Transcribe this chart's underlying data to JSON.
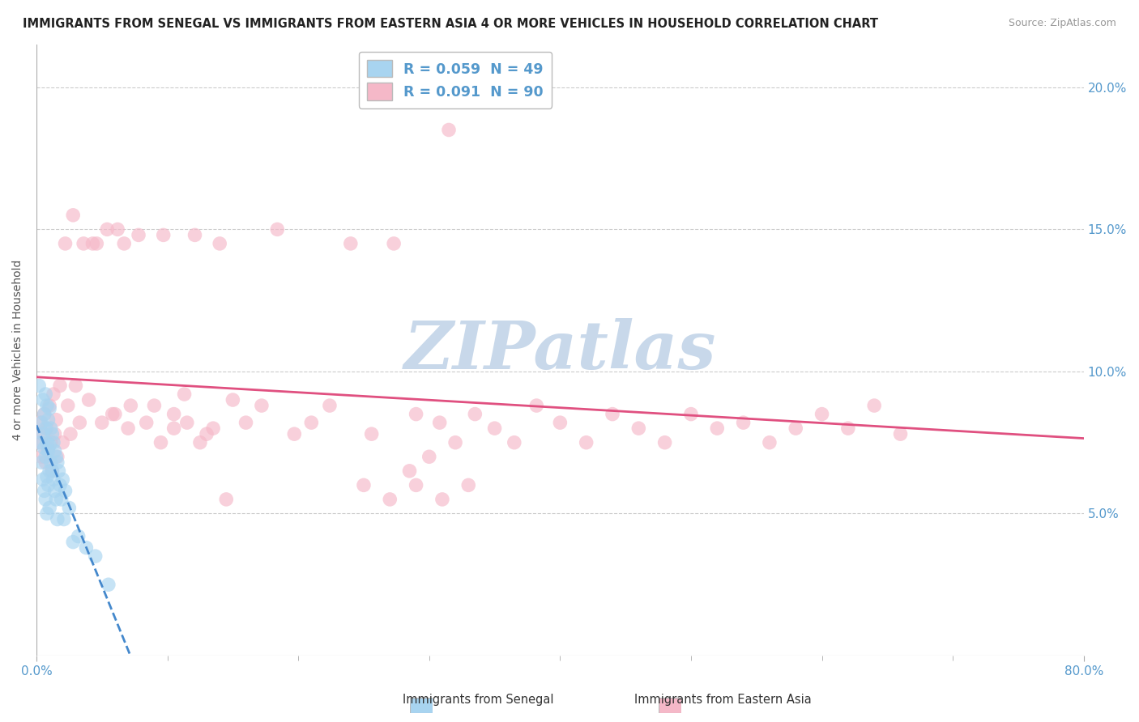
{
  "title": "IMMIGRANTS FROM SENEGAL VS IMMIGRANTS FROM EASTERN ASIA 4 OR MORE VEHICLES IN HOUSEHOLD CORRELATION CHART",
  "source": "Source: ZipAtlas.com",
  "ylabel": "4 or more Vehicles in Household",
  "xlim": [
    0.0,
    0.8
  ],
  "ylim": [
    0.0,
    0.215
  ],
  "ytick_positions": [
    0.05,
    0.1,
    0.15,
    0.2
  ],
  "ytick_labels": [
    "5.0%",
    "10.0%",
    "15.0%",
    "20.0%"
  ],
  "legend_items": [
    {
      "label": "R = 0.059  N = 49",
      "color": "#a8d4f0"
    },
    {
      "label": "R = 0.091  N = 90",
      "color": "#f5b8c8"
    }
  ],
  "watermark": "ZIPatlas",
  "watermark_color": "#c8d8ea",
  "blue_color": "#a8d4f0",
  "pink_color": "#f5b8c8",
  "blue_line_color": "#4488cc",
  "pink_line_color": "#e05080",
  "blue_scatter_x": [
    0.002,
    0.003,
    0.004,
    0.004,
    0.005,
    0.005,
    0.005,
    0.006,
    0.006,
    0.006,
    0.007,
    0.007,
    0.007,
    0.007,
    0.008,
    0.008,
    0.008,
    0.008,
    0.009,
    0.009,
    0.009,
    0.01,
    0.01,
    0.01,
    0.01,
    0.011,
    0.011,
    0.012,
    0.012,
    0.013,
    0.013,
    0.014,
    0.014,
    0.015,
    0.015,
    0.016,
    0.016,
    0.017,
    0.018,
    0.019,
    0.02,
    0.021,
    0.022,
    0.025,
    0.028,
    0.032,
    0.038,
    0.045,
    0.055
  ],
  "blue_scatter_y": [
    0.095,
    0.075,
    0.082,
    0.068,
    0.09,
    0.078,
    0.062,
    0.085,
    0.073,
    0.058,
    0.092,
    0.08,
    0.07,
    0.055,
    0.088,
    0.075,
    0.063,
    0.05,
    0.083,
    0.072,
    0.06,
    0.087,
    0.074,
    0.065,
    0.052,
    0.08,
    0.068,
    0.078,
    0.065,
    0.075,
    0.062,
    0.072,
    0.058,
    0.07,
    0.055,
    0.068,
    0.048,
    0.065,
    0.06,
    0.055,
    0.062,
    0.048,
    0.058,
    0.052,
    0.04,
    0.042,
    0.038,
    0.035,
    0.025
  ],
  "pink_scatter_x": [
    0.002,
    0.003,
    0.004,
    0.005,
    0.006,
    0.007,
    0.008,
    0.009,
    0.01,
    0.011,
    0.012,
    0.013,
    0.014,
    0.015,
    0.016,
    0.018,
    0.02,
    0.022,
    0.024,
    0.026,
    0.028,
    0.03,
    0.033,
    0.036,
    0.04,
    0.043,
    0.046,
    0.05,
    0.054,
    0.058,
    0.062,
    0.067,
    0.072,
    0.078,
    0.084,
    0.09,
    0.097,
    0.105,
    0.113,
    0.121,
    0.13,
    0.14,
    0.15,
    0.16,
    0.172,
    0.184,
    0.197,
    0.21,
    0.224,
    0.24,
    0.256,
    0.273,
    0.29,
    0.308,
    0.32,
    0.335,
    0.35,
    0.365,
    0.382,
    0.4,
    0.42,
    0.44,
    0.46,
    0.48,
    0.5,
    0.52,
    0.54,
    0.56,
    0.58,
    0.6,
    0.62,
    0.64,
    0.66,
    0.25,
    0.27,
    0.29,
    0.31,
    0.33,
    0.095,
    0.105,
    0.115,
    0.125,
    0.135,
    0.145,
    0.27,
    0.285,
    0.3,
    0.315,
    0.06,
    0.07
  ],
  "pink_scatter_y": [
    0.075,
    0.082,
    0.07,
    0.078,
    0.085,
    0.068,
    0.08,
    0.073,
    0.088,
    0.075,
    0.065,
    0.092,
    0.078,
    0.083,
    0.07,
    0.095,
    0.075,
    0.145,
    0.088,
    0.078,
    0.155,
    0.095,
    0.082,
    0.145,
    0.09,
    0.145,
    0.145,
    0.082,
    0.15,
    0.085,
    0.15,
    0.145,
    0.088,
    0.148,
    0.082,
    0.088,
    0.148,
    0.085,
    0.092,
    0.148,
    0.078,
    0.145,
    0.09,
    0.082,
    0.088,
    0.15,
    0.078,
    0.082,
    0.088,
    0.145,
    0.078,
    0.145,
    0.085,
    0.082,
    0.075,
    0.085,
    0.08,
    0.075,
    0.088,
    0.082,
    0.075,
    0.085,
    0.08,
    0.075,
    0.085,
    0.08,
    0.082,
    0.075,
    0.08,
    0.085,
    0.08,
    0.088,
    0.078,
    0.06,
    0.055,
    0.06,
    0.055,
    0.06,
    0.075,
    0.08,
    0.082,
    0.075,
    0.08,
    0.055,
    0.2,
    0.065,
    0.07,
    0.185,
    0.085,
    0.08
  ]
}
